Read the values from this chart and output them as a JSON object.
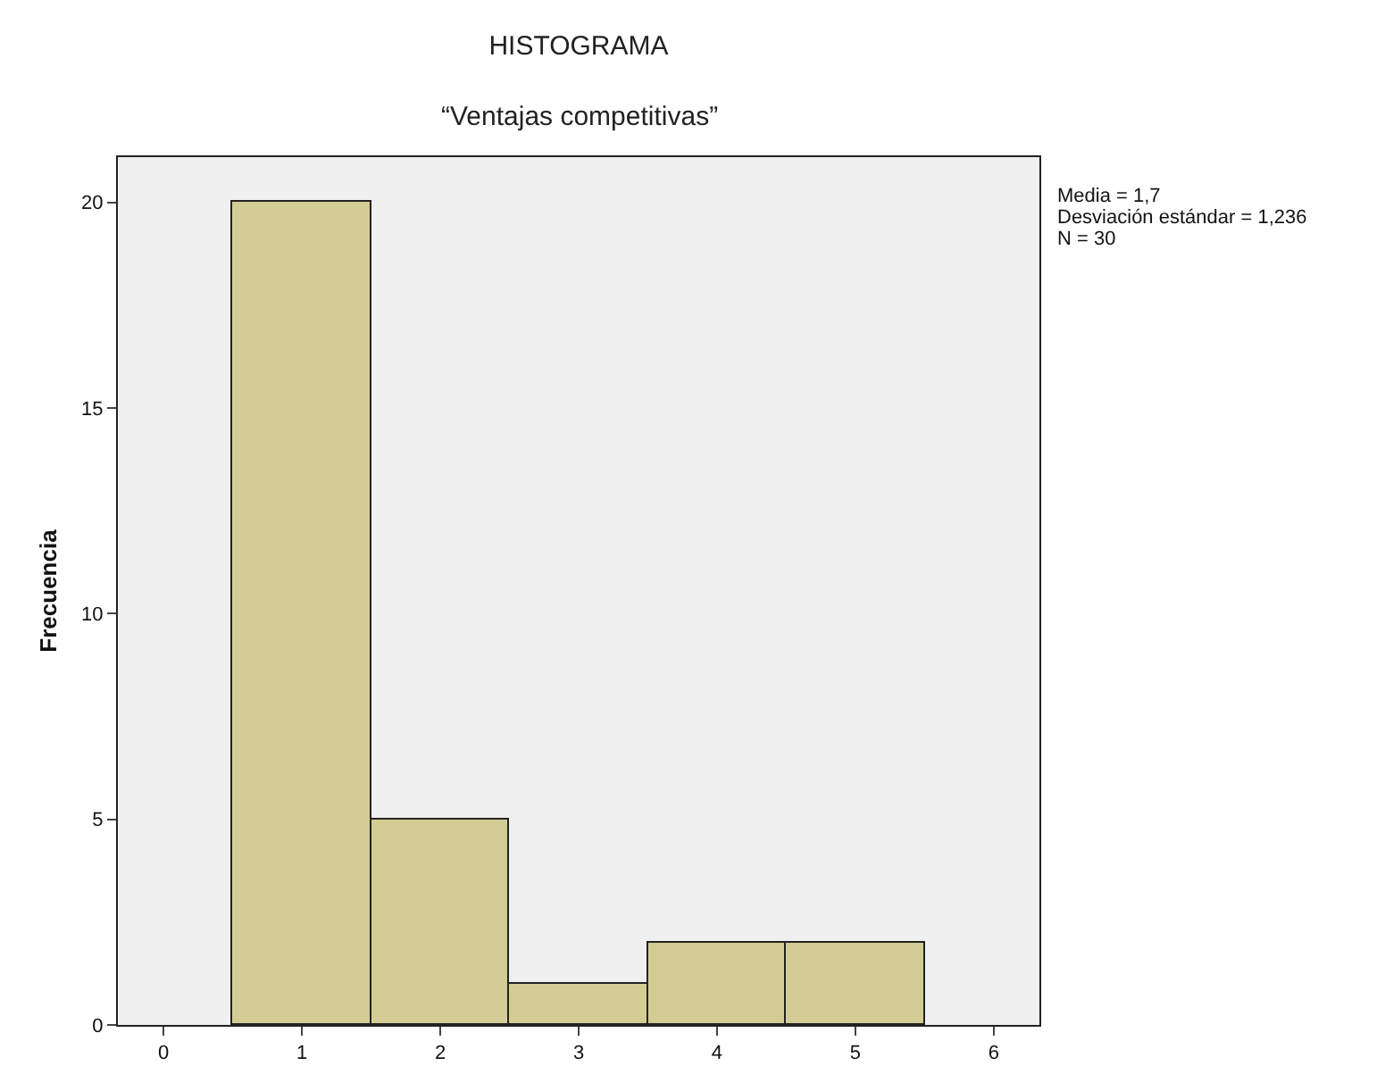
{
  "chart_data": {
    "type": "histogram",
    "title": "HISTOGRAMA",
    "subtitle": "“Ventajas competitivas”",
    "ylabel": "Frecuencia",
    "bins": [
      0.5,
      1.5,
      2.5,
      3.5,
      4.5,
      5.5
    ],
    "values": [
      20,
      5,
      1,
      2,
      2
    ],
    "color": "#d3cd95",
    "xlim": [
      -0.33,
      6.33
    ],
    "xticks": [
      0,
      1,
      2,
      3,
      4,
      5,
      6
    ],
    "ylim": [
      0,
      21.1
    ],
    "yticks": [
      0,
      5,
      10,
      15,
      20
    ],
    "grid": false,
    "legend": false,
    "annotations": [
      "Media = 1,7",
      "Desviación estándar = 1,236",
      "N = 30"
    ]
  }
}
